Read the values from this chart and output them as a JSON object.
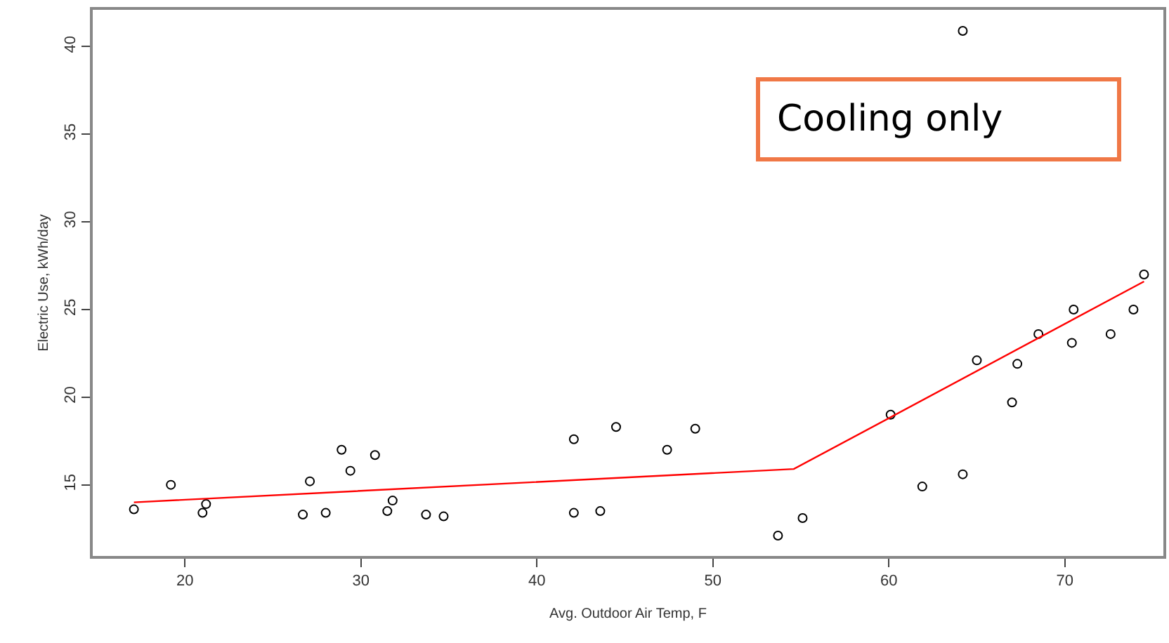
{
  "chart_data": {
    "type": "scatter",
    "xlabel": "Avg. Outdoor Air Temp, F",
    "ylabel": "Electric Use, kWh/day",
    "annotations": [
      "Cooling only"
    ],
    "xlim": [
      14.76,
      75.6
    ],
    "xticks": [
      20,
      30,
      40,
      50,
      60,
      70
    ],
    "ylim": [
      10.94,
      42.1
    ],
    "yticks": [
      15,
      20,
      25,
      30,
      35,
      40
    ],
    "grid": false,
    "marker": "circle",
    "series": [
      {
        "color": "#000000",
        "x": [
          17.1,
          19.2,
          21.0,
          21.2,
          26.7,
          27.1,
          28.0,
          28.9,
          29.4,
          30.8,
          31.5,
          31.8,
          33.7,
          34.7,
          42.1,
          42.1,
          43.6,
          44.5,
          47.4,
          49.0,
          53.7,
          55.1,
          60.1,
          61.9,
          64.2,
          64.2,
          65.0,
          67.0,
          67.3,
          68.5,
          70.4,
          70.5,
          72.6,
          73.9,
          74.5
        ],
        "values": [
          13.6,
          15.0,
          13.4,
          13.9,
          13.3,
          15.2,
          13.4,
          17.0,
          15.8,
          16.7,
          13.5,
          14.1,
          13.3,
          13.2,
          17.6,
          13.4,
          13.5,
          18.3,
          17.0,
          18.2,
          12.1,
          13.1,
          19.0,
          14.9,
          15.6,
          40.9,
          22.1,
          19.7,
          21.9,
          23.6,
          23.1,
          25.0,
          23.6,
          25.0,
          27.0
        ]
      },
      {
        "type": "line",
        "marker": "none",
        "color": "#ff0000",
        "line_style": "solid",
        "x": [
          17.1,
          54.6,
          74.5
        ],
        "values": [
          14.0,
          15.9,
          26.6
        ]
      }
    ]
  }
}
